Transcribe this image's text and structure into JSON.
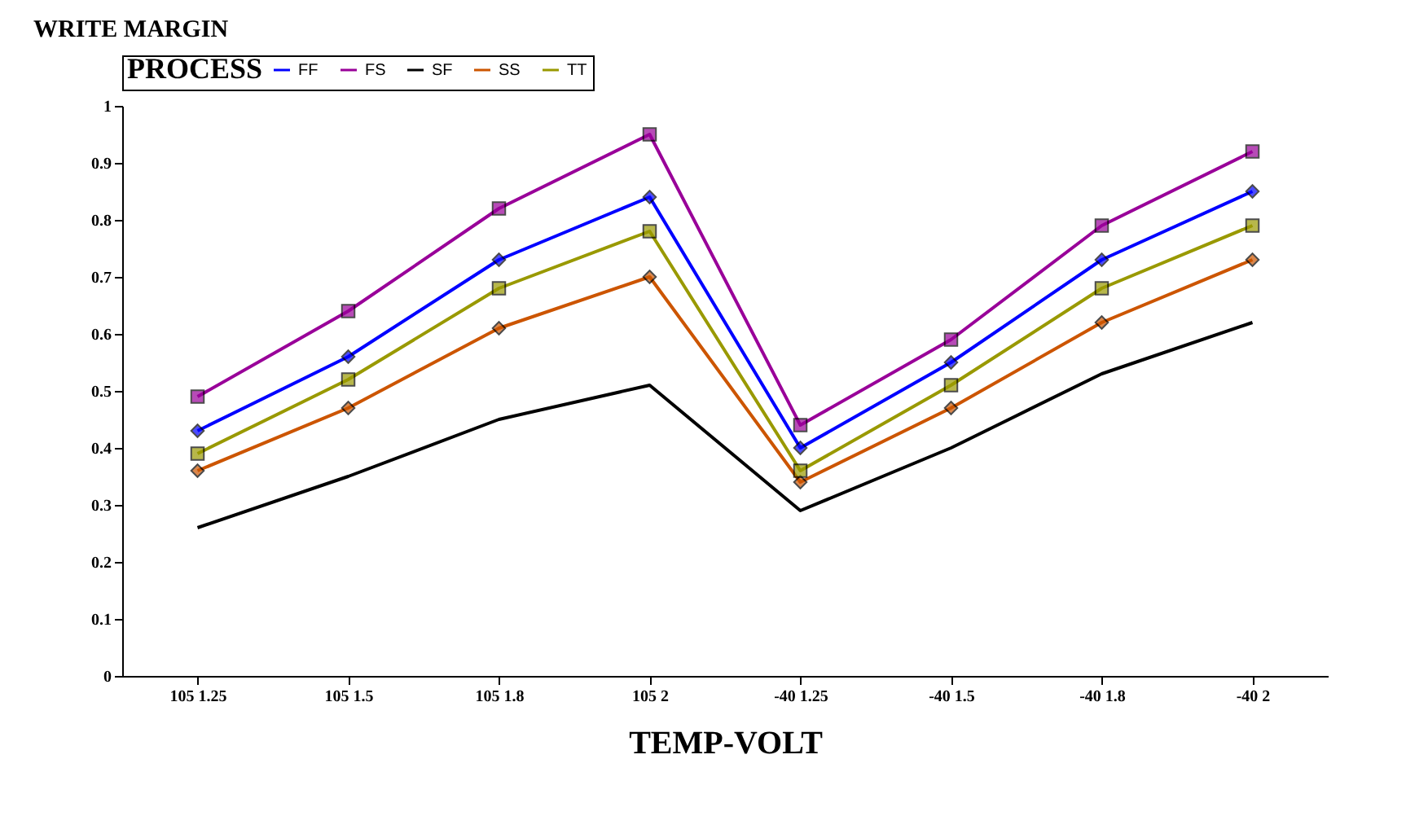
{
  "chart_data": {
    "type": "line",
    "legend_title": "PROCESS",
    "ylabel": "WRITE MARGIN",
    "xlabel": "TEMP-VOLT",
    "categories": [
      "105 1.25",
      "105 1.5",
      "105 1.8",
      "105 2",
      "-40 1.25",
      "-40 1.5",
      "-40 1.8",
      "-40 2"
    ],
    "ylim": [
      0,
      1
    ],
    "yticks": [
      0,
      0.1,
      0.2,
      0.3,
      0.4,
      0.5,
      0.6,
      0.7,
      0.8,
      0.9,
      1
    ],
    "grid": false,
    "legend": "top",
    "series": [
      {
        "name": "FF",
        "color": "#0000ff",
        "marker": "diamond",
        "values": [
          0.43,
          0.56,
          0.73,
          0.84,
          0.4,
          0.55,
          0.73,
          0.85
        ]
      },
      {
        "name": "FS",
        "color": "#990099",
        "marker": "square",
        "values": [
          0.49,
          0.64,
          0.82,
          0.95,
          0.44,
          0.59,
          0.79,
          0.92
        ]
      },
      {
        "name": "SF",
        "color": "#000000",
        "marker": "none",
        "values": [
          0.26,
          0.35,
          0.45,
          0.51,
          0.29,
          0.4,
          0.53,
          0.62
        ]
      },
      {
        "name": "SS",
        "color": "#cc5500",
        "marker": "diamond",
        "values": [
          0.36,
          0.47,
          0.61,
          0.7,
          0.34,
          0.47,
          0.62,
          0.73
        ]
      },
      {
        "name": "TT",
        "color": "#999900",
        "marker": "square",
        "values": [
          0.39,
          0.52,
          0.68,
          0.78,
          0.36,
          0.51,
          0.68,
          0.79
        ]
      }
    ]
  }
}
